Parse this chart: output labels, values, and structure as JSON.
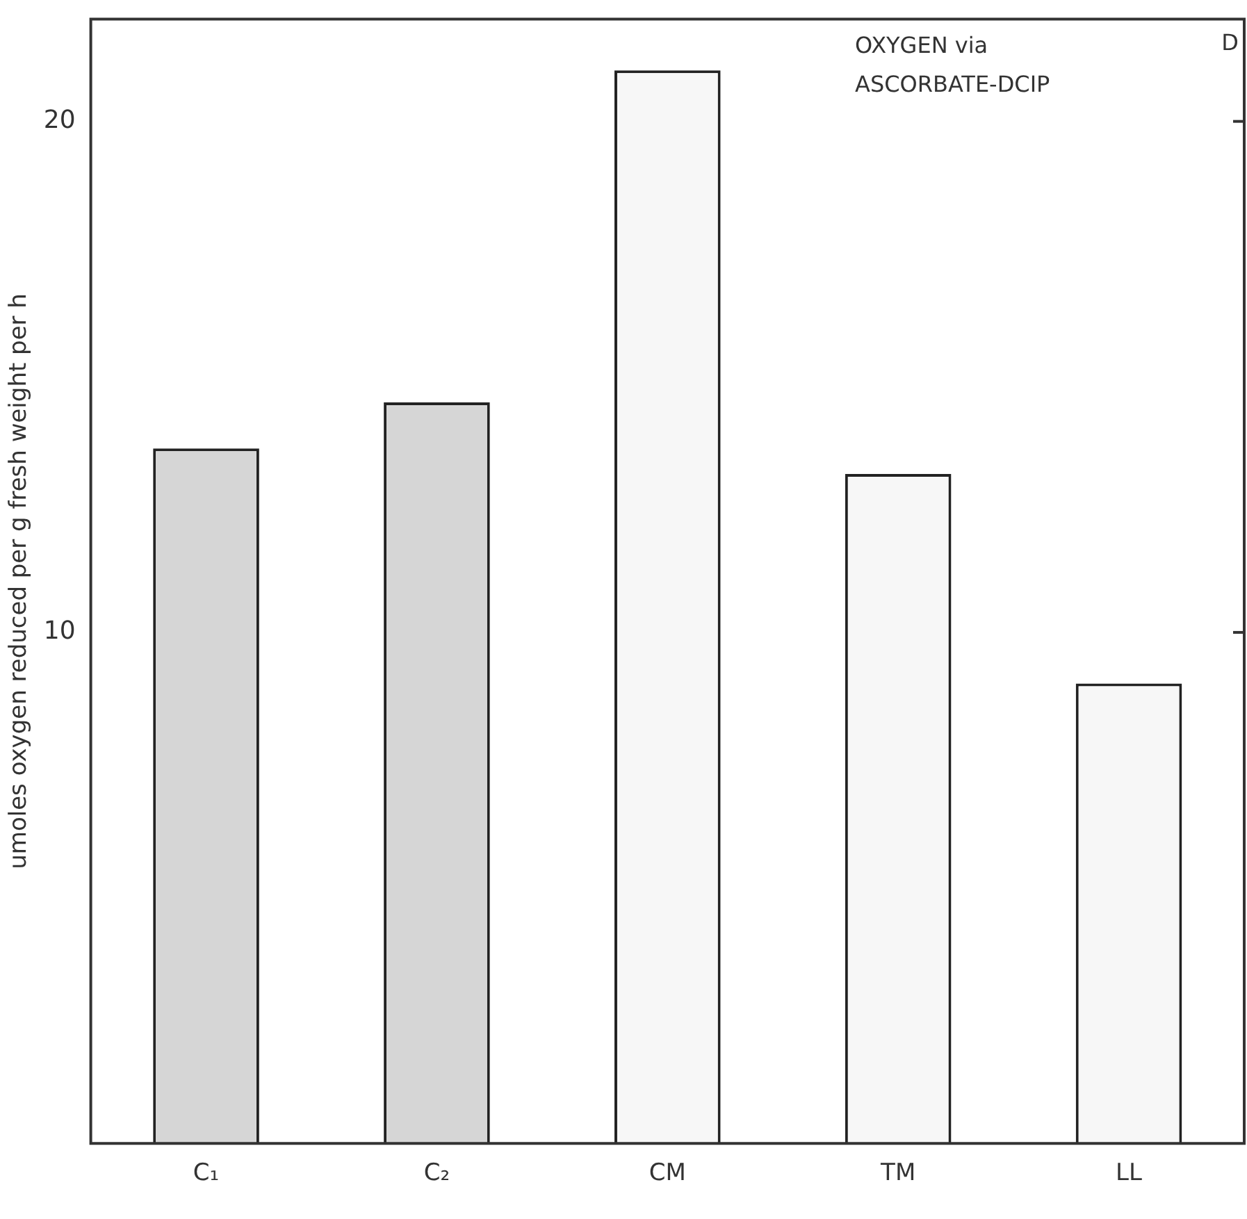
{
  "chart_data": {
    "type": "bar",
    "ylabel": "umoles oxygen reduced per g fresh weight per h",
    "categories": [
      "C₁",
      "C₂",
      "CM",
      "TM",
      "LL"
    ],
    "values": [
      13.6,
      14.5,
      21.0,
      13.1,
      9.0
    ],
    "colors": [
      "#d6d6d6",
      "#d6d6d6",
      "#f7f7f7",
      "#f7f7f7",
      "#f7f7f7"
    ],
    "ylim": [
      0,
      22
    ],
    "yticks": [
      10,
      20
    ],
    "grid": false,
    "legend": false,
    "annotations": [
      "OXYGEN via",
      "ASCORBATE-DCIP",
      "D"
    ]
  }
}
